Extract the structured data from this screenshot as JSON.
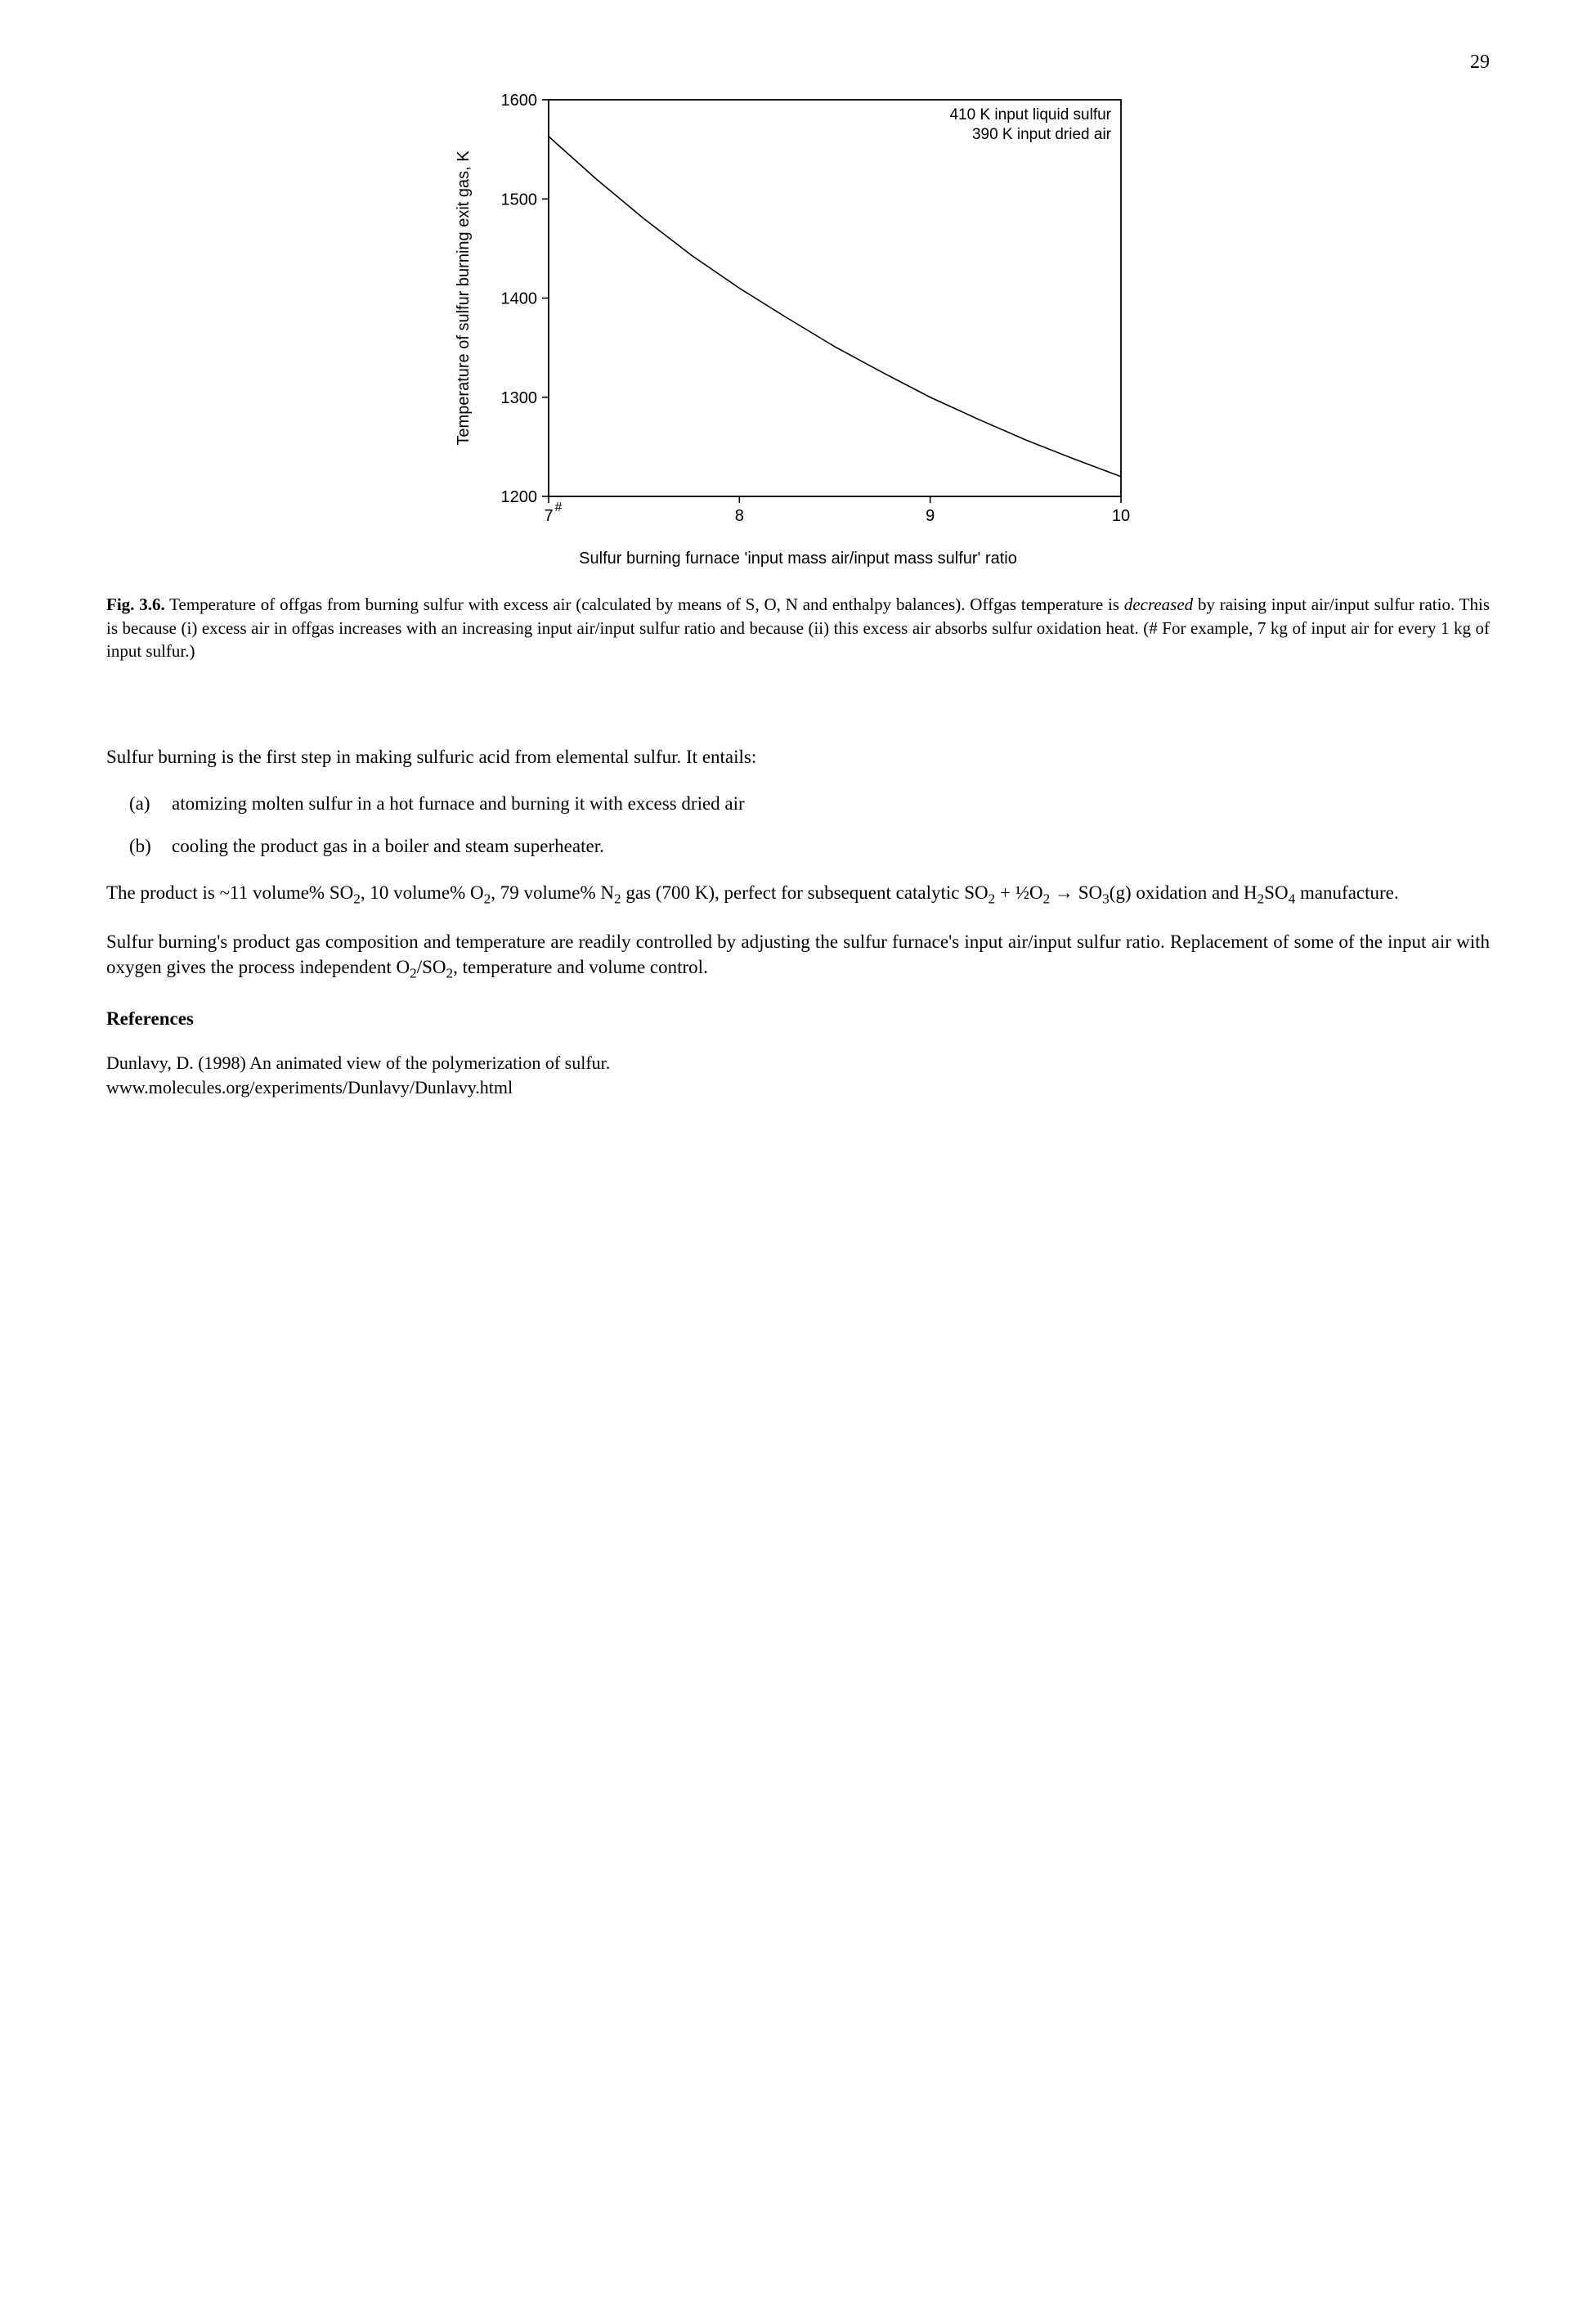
{
  "page_number": "29",
  "chart": {
    "type": "line",
    "ylabel": "Temperature of sulfur burning exit gas, K",
    "xlabel": "Sulfur burning furnace 'input mass air/input mass sulfur' ratio",
    "xlim": [
      7,
      10
    ],
    "ylim": [
      1200,
      1600
    ],
    "xticks": [
      7,
      8,
      9,
      10
    ],
    "yticks": [
      1200,
      1300,
      1400,
      1500,
      1600
    ],
    "annotations": [
      "410 K input liquid sulfur",
      "390 K input dried air"
    ],
    "hash_marker_x": 7,
    "series": {
      "x": [
        7.0,
        7.25,
        7.5,
        7.75,
        8.0,
        8.25,
        8.5,
        8.75,
        9.0,
        9.25,
        9.5,
        9.75,
        10.0
      ],
      "y": [
        1563,
        1520,
        1480,
        1443,
        1410,
        1380,
        1351,
        1325,
        1300,
        1278,
        1257,
        1238,
        1220
      ]
    },
    "colors": {
      "background": "#ffffff",
      "axis": "#000000",
      "line": "#000000",
      "tick_label": "#000000"
    },
    "fontsize_axis_label": 20,
    "fontsize_tick": 20,
    "fontsize_annotation": 19,
    "line_width": 1.6,
    "axis_width": 1.8
  },
  "caption_label": "Fig. 3.6.",
  "caption_text_1": "  Temperature of offgas from burning sulfur with excess air (calculated by means of S, O, N and enthalpy balances).  Offgas temperature is ",
  "caption_italic": "decreased",
  "caption_text_2": " by raising input air/input sulfur ratio.  This is because (i) excess air in offgas increases with an increasing input air/input sulfur ratio and because (ii) this excess air absorbs sulfur oxidation heat.  (# For example, 7 kg of input air for every 1 kg of input sulfur.)",
  "para_intro": "Sulfur burning is the first step in making sulfuric acid from elemental sulfur.  It entails:",
  "list_a_marker": "(a)",
  "list_a_text": "atomizing molten sulfur in a hot furnace and burning it with excess dried air",
  "list_b_marker": "(b)",
  "list_b_text": "cooling the product gas in a boiler and steam superheater.",
  "para_product_1": "The product is ~11 volume% SO",
  "para_product_2": ", 10 volume% O",
  "para_product_3": ", 79 volume% N",
  "para_product_4": " gas (700 K), perfect for subsequent catalytic  SO",
  "para_product_5": "  +  ½O",
  "para_product_6": "   → SO",
  "para_product_7": "(g)  oxidation  and  H",
  "para_product_8": "SO",
  "para_product_9": " manufacture.",
  "para_control_1": "Sulfur burning's product gas composition and temperature are readily controlled by adjusting the sulfur furnace's input air/input sulfur ratio.  Replacement of some of the input air with oxygen gives the process independent O",
  "para_control_2": "/SO",
  "para_control_3": ", temperature and volume control.",
  "refs_heading": "References",
  "ref1_line1": "Dunlavy, D. (1998) An animated view of the polymerization of sulfur.",
  "ref1_line2": "www.molecules.org/experiments/Dunlavy/Dunlavy.html",
  "sub2": "2",
  "sub3": "3",
  "sub4": "4"
}
